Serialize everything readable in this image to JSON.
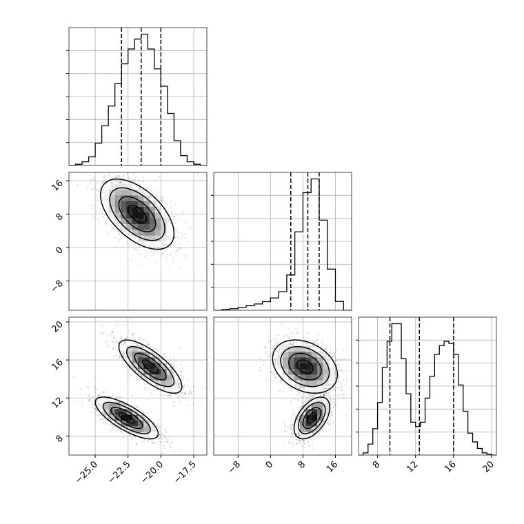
{
  "chart_data": {
    "type": "corner",
    "grid": true,
    "parameters": [
      "",
      "",
      ""
    ],
    "histograms": [
      {
        "param_index": 0,
        "xlim": [
          -27,
          -16.5
        ],
        "bins": [
          -27.0,
          -26.5,
          -26.0,
          -25.5,
          -25.0,
          -24.5,
          -24.0,
          -23.5,
          -23.0,
          -22.5,
          -22.0,
          -21.5,
          -21.0,
          -20.5,
          -20.0,
          -19.5,
          -19.0,
          -18.5,
          -18.0,
          -17.5,
          -17.0,
          -16.5
        ],
        "counts": [
          0,
          0.5,
          1.5,
          3.5,
          9,
          16,
          24,
          33,
          41,
          47,
          51,
          53,
          47,
          39,
          32,
          21,
          10,
          4,
          1.5,
          0.5,
          0
        ],
        "quantiles": [
          -23.0,
          -21.5,
          -20.0
        ]
      },
      {
        "param_index": 1,
        "xlim": [
          -14,
          20
        ],
        "bins": [
          -14,
          -12,
          -10,
          -8,
          -6,
          -4,
          -2,
          0,
          2,
          4,
          6,
          8,
          10,
          12,
          14,
          16,
          18,
          20
        ],
        "counts": [
          0,
          0.4,
          0.8,
          1.5,
          2.3,
          3.2,
          4.4,
          6.3,
          9.5,
          18,
          40,
          60,
          67,
          46,
          21,
          4.5,
          0
        ],
        "quantiles": [
          5.0,
          9.2,
          12.0
        ]
      },
      {
        "param_index": 2,
        "xlim": [
          6,
          20.5
        ],
        "bins": [
          6.0,
          6.5,
          7.0,
          7.5,
          8.0,
          8.5,
          9.0,
          9.5,
          10.0,
          10.5,
          11.0,
          11.5,
          12.0,
          12.5,
          13.0,
          13.5,
          14.0,
          14.5,
          15.0,
          15.5,
          16.0,
          16.5,
          17.0,
          17.5,
          18.0,
          18.5,
          19.0,
          19.5,
          20.0,
          20.5
        ],
        "counts": [
          0,
          0.5,
          2.5,
          6,
          12,
          20,
          26,
          30,
          30,
          22,
          14,
          7.5,
          6.5,
          7.5,
          13,
          18,
          23,
          25,
          26,
          25.5,
          23,
          16,
          10,
          5,
          3,
          1.5,
          0.5,
          0.2,
          0
        ],
        "quantiles": [
          9.3,
          12.4,
          16.0
        ]
      }
    ],
    "pairs": [
      {
        "x_param": 0,
        "y_param": 1,
        "xlim": [
          -27,
          -16.5
        ],
        "ylim": [
          -15,
          18
        ],
        "clusters": [
          {
            "x": -21.8,
            "y": 8.0,
            "sx": 1.4,
            "sy": 4.2,
            "rho": -0.55,
            "weight": 1.0
          }
        ]
      },
      {
        "x_param": 0,
        "y_param": 2,
        "xlim": [
          -27,
          -16.5
        ],
        "ylim": [
          6,
          20.5
        ],
        "clusters": [
          {
            "x": -20.8,
            "y": 15.3,
            "sx": 1.2,
            "sy": 1.4,
            "rho": -0.75,
            "weight": 1.0
          },
          {
            "x": -22.6,
            "y": 9.9,
            "sx": 1.2,
            "sy": 1.1,
            "rho": -0.75,
            "weight": 1.05
          }
        ]
      },
      {
        "x_param": 1,
        "y_param": 2,
        "xlim": [
          -14,
          20
        ],
        "ylim": [
          6,
          20.5
        ],
        "clusters": [
          {
            "x": 8.5,
            "y": 15.3,
            "sx": 4.0,
            "sy": 1.4,
            "rho": -0.3,
            "weight": 1.0
          },
          {
            "x": 10.2,
            "y": 9.9,
            "sx": 2.2,
            "sy": 1.1,
            "rho": 0.5,
            "weight": 1.05
          }
        ]
      }
    ],
    "ticks": {
      "p0": [
        -25.0,
        -22.5,
        -20.0,
        -17.5
      ],
      "p1": [
        -8,
        0,
        8,
        16
      ],
      "p2": [
        8,
        12,
        16,
        20
      ]
    },
    "tick_labels": {
      "p0": [
        "−25.0",
        "−22.5",
        "−20.0",
        "−17.5"
      ],
      "p1": [
        "−8",
        "0",
        "8",
        "16"
      ],
      "p2": [
        "8",
        "12",
        "16",
        "20"
      ]
    },
    "colors": {
      "line": "#000000",
      "points": "#555555",
      "grid": "#b0b0b0",
      "frame": "#444444"
    }
  }
}
